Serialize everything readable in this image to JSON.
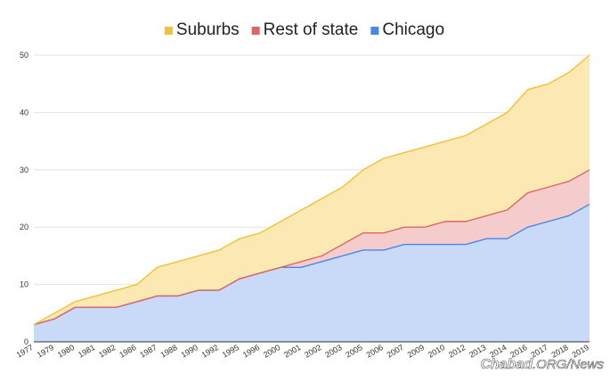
{
  "chart_data": {
    "type": "area",
    "stacked": true,
    "title": "",
    "xlabel": "",
    "ylabel": "",
    "ylim": [
      0,
      50
    ],
    "yticks": [
      "0",
      "10",
      "20",
      "30",
      "40",
      "50"
    ],
    "grid": true,
    "legend_position": "top-center",
    "categories": [
      "1977",
      "1979",
      "1980",
      "1981",
      "1982",
      "1986",
      "1987",
      "1988",
      "1990",
      "1992",
      "1995",
      "1996",
      "2000",
      "2001",
      "2002",
      "2003",
      "2005",
      "2006",
      "2007",
      "2009",
      "2010",
      "2012",
      "2013",
      "2014",
      "2016",
      "2017",
      "2018",
      "2019"
    ],
    "series": [
      {
        "name": "Chicago",
        "color": "#4a86e8",
        "fill": "#c9daf8",
        "values": [
          3,
          4,
          6,
          6,
          6,
          7,
          8,
          8,
          9,
          9,
          11,
          12,
          13,
          13,
          14,
          15,
          16,
          16,
          17,
          17,
          17,
          17,
          18,
          18,
          20,
          21,
          22,
          24
        ]
      },
      {
        "name": "Rest of state",
        "color": "#e06666",
        "fill": "#f4cccc",
        "values": [
          0,
          0,
          0,
          0,
          0,
          0,
          0,
          0,
          0,
          0,
          0,
          0,
          0,
          1,
          1,
          2,
          3,
          3,
          3,
          3,
          4,
          4,
          4,
          5,
          6,
          6,
          6,
          6
        ]
      },
      {
        "name": "Suburbs",
        "color": "#f1c232",
        "fill": "#fce8b2",
        "values": [
          0,
          1,
          1,
          2,
          3,
          3,
          5,
          6,
          6,
          7,
          7,
          7,
          8,
          9,
          10,
          10,
          11,
          13,
          13,
          14,
          14,
          15,
          16,
          17,
          18,
          18,
          19,
          20
        ]
      }
    ],
    "legend_order": [
      "Suburbs",
      "Rest of state",
      "Chicago"
    ]
  },
  "watermark": {
    "brand": "Chabad",
    "suffix": ".ORG/News"
  }
}
